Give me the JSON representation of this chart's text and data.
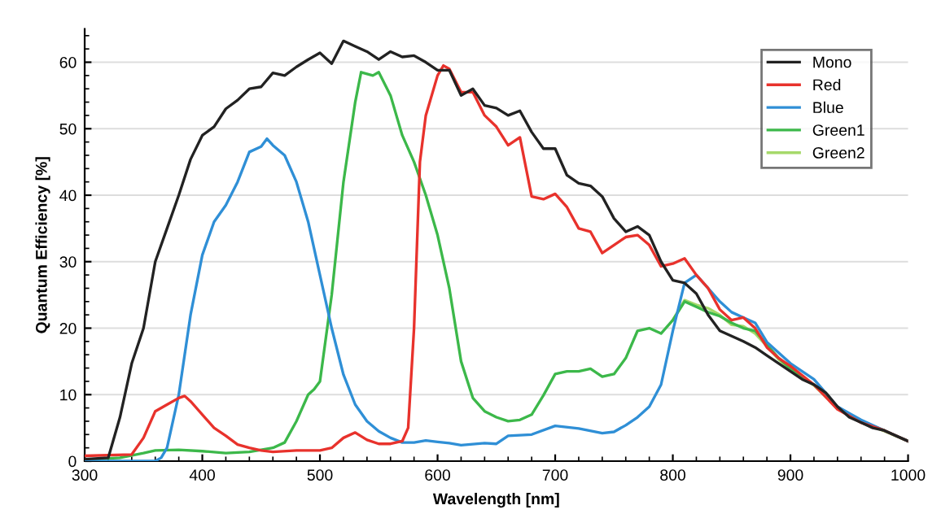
{
  "chart_data": {
    "type": "line",
    "xlabel": "Wavelength [nm]",
    "ylabel": "Quantum Efficiency [%]",
    "xlim": [
      300,
      1000
    ],
    "ylim": [
      0,
      65
    ],
    "xticks": [
      300,
      400,
      500,
      600,
      700,
      800,
      900,
      1000
    ],
    "yticks": [
      0,
      10,
      20,
      30,
      40,
      50,
      60
    ],
    "grid": "y",
    "legend": "top right",
    "marker": "none",
    "line_style": "solid",
    "series": [
      {
        "name": "Mono",
        "color": "#222222",
        "x": [
          300,
          320,
          330,
          340,
          350,
          360,
          370,
          380,
          390,
          400,
          410,
          420,
          430,
          440,
          450,
          460,
          470,
          480,
          490,
          500,
          510,
          520,
          530,
          540,
          550,
          560,
          570,
          580,
          590,
          600,
          610,
          620,
          630,
          640,
          650,
          660,
          670,
          680,
          690,
          700,
          710,
          720,
          730,
          740,
          750,
          760,
          770,
          780,
          790,
          800,
          810,
          820,
          830,
          840,
          850,
          860,
          870,
          880,
          890,
          900,
          910,
          920,
          930,
          940,
          950,
          960,
          970,
          980,
          990,
          1000
        ],
        "values": [
          0.3,
          0.5,
          6.6,
          14.7,
          20,
          30,
          35,
          40,
          45.4,
          49,
          50.3,
          53,
          54.3,
          56,
          56.3,
          58.4,
          58,
          59.3,
          60.4,
          61.4,
          59.8,
          63.2,
          62.4,
          61.6,
          60.4,
          61.6,
          60.8,
          61,
          60,
          58.8,
          58.8,
          55,
          56,
          53.5,
          53.1,
          52,
          52.7,
          49.5,
          47,
          47,
          43,
          41.8,
          41.4,
          39.8,
          36.5,
          34.5,
          35.3,
          34,
          30,
          27.2,
          26.8,
          25.2,
          22,
          19.6,
          18.8,
          18,
          17.1,
          15.9,
          14.7,
          13.5,
          12.3,
          11.5,
          10.3,
          8.2,
          6.6,
          5.8,
          5,
          4.6,
          3.8,
          3
        ]
      },
      {
        "name": "Red",
        "color": "#e8322c",
        "x": [
          300,
          340,
          350,
          360,
          370,
          380,
          385,
          390,
          400,
          410,
          420,
          430,
          440,
          450,
          460,
          480,
          500,
          510,
          520,
          530,
          540,
          550,
          560,
          570,
          575,
          580,
          585,
          590,
          600,
          605,
          610,
          620,
          630,
          640,
          650,
          660,
          670,
          680,
          690,
          700,
          710,
          720,
          730,
          740,
          750,
          760,
          770,
          780,
          790,
          800,
          810,
          820,
          830,
          840,
          850,
          860,
          870,
          880,
          890,
          900,
          920,
          940,
          960,
          980,
          1000
        ],
        "values": [
          0.8,
          1,
          3.5,
          7.5,
          8.5,
          9.5,
          9.8,
          9,
          7,
          5,
          3.8,
          2.5,
          2,
          1.6,
          1.4,
          1.6,
          1.6,
          2,
          3.5,
          4.3,
          3.2,
          2.6,
          2.6,
          3,
          5,
          20,
          45,
          52,
          58,
          59.5,
          59,
          55.5,
          55.5,
          52,
          50.3,
          47.5,
          48.7,
          39.8,
          39.4,
          40.2,
          38.2,
          35,
          34.5,
          31.3,
          32.5,
          33.7,
          34,
          32.5,
          29.3,
          29.7,
          30.5,
          28,
          26,
          22.8,
          21.2,
          21.6,
          20,
          17.1,
          15.5,
          14.3,
          11.5,
          7.8,
          5.8,
          4.6,
          3
        ]
      },
      {
        "name": "Blue",
        "color": "#2f8fd6",
        "x": [
          300,
          360,
          365,
          370,
          380,
          390,
          400,
          410,
          420,
          430,
          440,
          450,
          455,
          460,
          470,
          480,
          490,
          500,
          510,
          520,
          530,
          540,
          550,
          560,
          570,
          580,
          590,
          600,
          610,
          620,
          640,
          650,
          660,
          680,
          700,
          720,
          740,
          750,
          760,
          770,
          780,
          790,
          800,
          810,
          820,
          830,
          840,
          850,
          860,
          870,
          880,
          890,
          900,
          920,
          940,
          960,
          980,
          1000
        ],
        "values": [
          0,
          0,
          0.5,
          2,
          10,
          22,
          31,
          36,
          38.5,
          42,
          46.5,
          47.3,
          48.5,
          47.5,
          46,
          42,
          36,
          28,
          20,
          13,
          8.5,
          6,
          4.5,
          3.5,
          2.8,
          2.8,
          3.1,
          2.9,
          2.7,
          2.4,
          2.7,
          2.6,
          3.8,
          4,
          5.3,
          4.9,
          4.2,
          4.4,
          5.4,
          6.6,
          8.2,
          11.5,
          19.6,
          26.8,
          28,
          26,
          24,
          22.4,
          21.6,
          20.8,
          17.9,
          16.3,
          14.7,
          12.3,
          8.2,
          6.2,
          4.6,
          3
        ]
      },
      {
        "name": "Green1",
        "color": "#3cb84a",
        "x": [
          300,
          330,
          350,
          360,
          380,
          400,
          420,
          440,
          460,
          470,
          480,
          490,
          495,
          500,
          510,
          520,
          530,
          535,
          545,
          550,
          560,
          570,
          580,
          590,
          600,
          610,
          620,
          630,
          640,
          650,
          660,
          670,
          680,
          690,
          700,
          710,
          720,
          730,
          740,
          750,
          760,
          770,
          780,
          790,
          800,
          810,
          820,
          830,
          840,
          850,
          860,
          870,
          880,
          890,
          900,
          920,
          940,
          960,
          980,
          1000
        ],
        "values": [
          0.2,
          0.5,
          1.2,
          1.6,
          1.7,
          1.5,
          1.2,
          1.4,
          2,
          2.8,
          6,
          10,
          10.8,
          12,
          25,
          42,
          54,
          58.5,
          58,
          58.5,
          55,
          49,
          45,
          40,
          34,
          26,
          15,
          9.5,
          7.5,
          6.6,
          6,
          6.2,
          7,
          9.9,
          13.1,
          13.5,
          13.5,
          13.9,
          12.7,
          13.1,
          15.5,
          19.6,
          20,
          19.2,
          21.2,
          24,
          23.2,
          22.4,
          21.8,
          20.8,
          20,
          19.6,
          17.5,
          15.5,
          13.9,
          11.5,
          8.1,
          6,
          4.6,
          3
        ]
      },
      {
        "name": "Green2",
        "color": "#a6d96a",
        "x": [
          800,
          810,
          820,
          830,
          840,
          850,
          860,
          870,
          880,
          890,
          900,
          920,
          940,
          960,
          980,
          1000
        ],
        "values": [
          21.2,
          24.2,
          23.5,
          23,
          22,
          20.5,
          20.3,
          19.2,
          17.3,
          15.3,
          13.8,
          11.4,
          8,
          5.9,
          4.5,
          3
        ]
      }
    ]
  }
}
